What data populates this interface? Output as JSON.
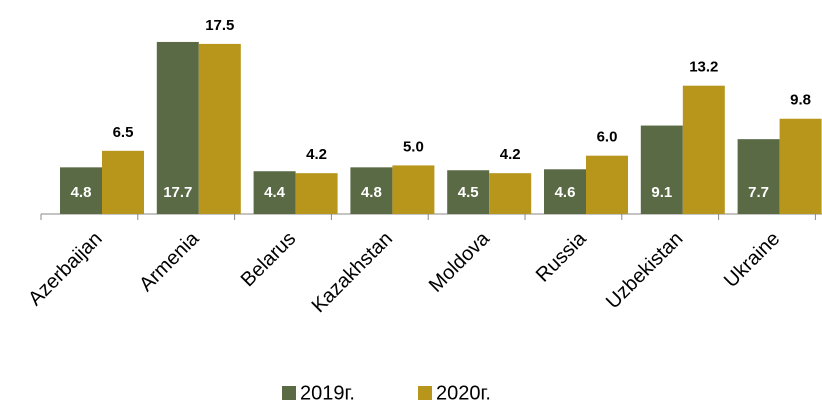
{
  "chart_data": {
    "type": "bar",
    "categories": [
      "Azerbaijan",
      "Armenia",
      "Belarus",
      "Kazakhstan",
      "Moldova",
      "Russia",
      "Uzbekistan",
      "Ukraine"
    ],
    "series": [
      {
        "name": "2019г.",
        "color": "#5a6a45",
        "values": [
          4.8,
          17.7,
          4.4,
          4.8,
          4.5,
          4.6,
          9.1,
          7.7
        ],
        "value_labels": [
          "4.8",
          "17.7",
          "4.4",
          "4.8",
          "4.5",
          "4.6",
          "9.1",
          "7.7"
        ]
      },
      {
        "name": "2020г.",
        "color": "#b8961c",
        "values": [
          6.5,
          17.5,
          4.2,
          5.0,
          4.2,
          6.0,
          13.2,
          9.8
        ],
        "value_labels": [
          "6.5",
          "17.5",
          "4.2",
          "5.0",
          "4.2",
          "6.0",
          "13.2",
          "9.8"
        ]
      }
    ],
    "legend": "bottom"
  }
}
